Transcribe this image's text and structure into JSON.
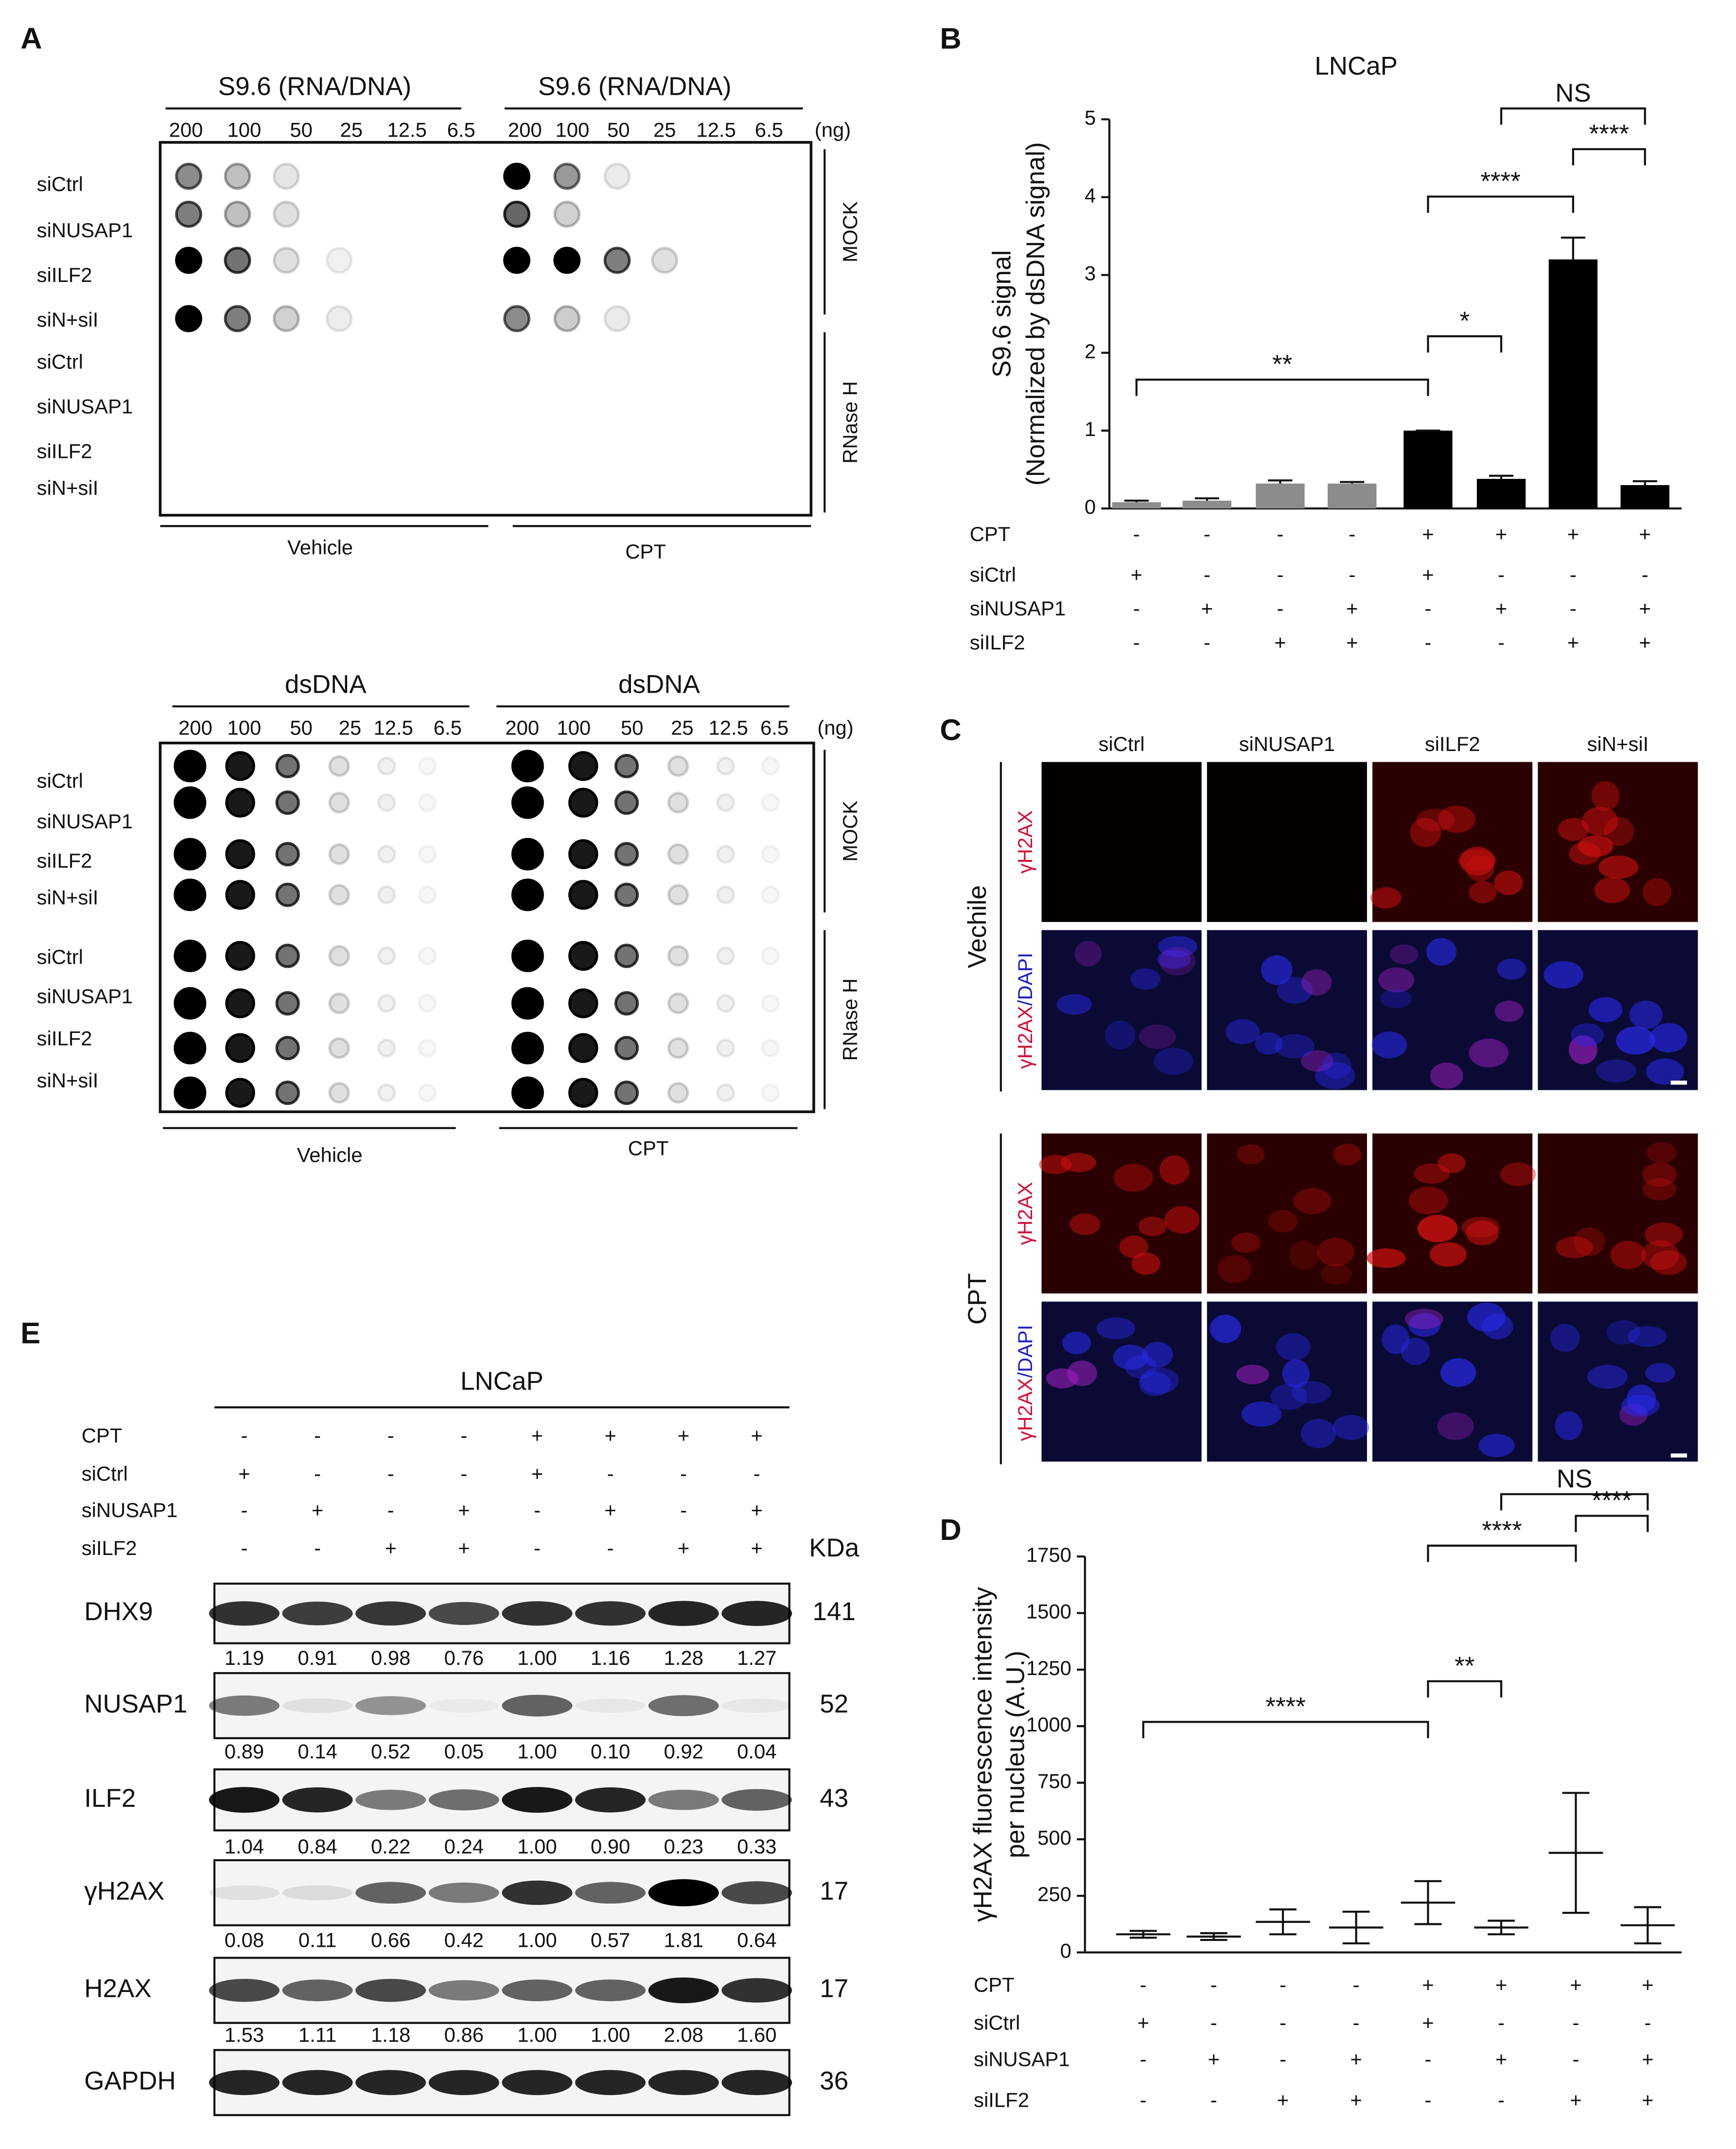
{
  "panel_labels": [
    "A",
    "B",
    "C",
    "D",
    "E"
  ],
  "dot_blot_s96": {
    "headers": [
      "S9.6 (RNA/DNA)",
      "S9.6 (RNA/DNA)"
    ],
    "amounts": [
      "200",
      "100",
      "50",
      "25",
      "12.5",
      "6.5"
    ],
    "unit": "(ng)",
    "rows": [
      "siCtrl",
      "siNUSAP1",
      "siILF2",
      "siN+siI",
      "siCtrl",
      "siNUSAP1",
      "siILF2",
      "siN+siI"
    ],
    "groups": [
      "MOCK",
      "RNase H"
    ],
    "treatments": [
      "Vehicle",
      "CPT"
    ]
  },
  "dot_blot_dsdna": {
    "headers": [
      "dsDNA",
      "dsDNA"
    ],
    "amounts": [
      "200",
      "100",
      "50",
      "25",
      "12.5",
      "6.5"
    ],
    "unit": "(ng)",
    "rows": [
      "siCtrl",
      "siNUSAP1",
      "siILF2",
      "siN+siI",
      "siCtrl",
      "siNUSAP1",
      "siILF2",
      "siN+siI"
    ],
    "groups": [
      "MOCK",
      "RNase H"
    ],
    "treatments": [
      "Vehicle",
      "CPT"
    ]
  },
  "immunofluorescence": {
    "columns": [
      "siCtrl",
      "siNUSAP1",
      "siILF2",
      "siN+siI"
    ],
    "conditions": [
      "Vechile",
      "CPT"
    ],
    "stain_label": "γH2AX",
    "merge_label_red": "γH2AX",
    "merge_label_blue": "/DAPI"
  },
  "chart_data": [
    {
      "type": "bar",
      "title": "LNCaP",
      "y_label": [
        "S9.6 signal",
        "(Normalized by dsDNA signal)"
      ],
      "values": [
        0.08,
        0.1,
        0.32,
        0.32,
        1.0,
        0.38,
        3.2,
        0.3
      ],
      "errors": [
        0.02,
        0.03,
        0.04,
        0.02,
        0,
        0.04,
        0.28,
        0.05
      ],
      "colors": [
        "#8c8c8c",
        "#8c8c8c",
        "#8c8c8c",
        "#8c8c8c",
        "#000000",
        "#000000",
        "#000000",
        "#000000"
      ],
      "ylim": [
        0,
        5
      ],
      "yticks": [
        0,
        1,
        2,
        3,
        4,
        5
      ],
      "conditions": [
        {
          "name": "CPT",
          "signs": [
            "-",
            "-",
            "-",
            "-",
            "+",
            "+",
            "+",
            "+"
          ]
        },
        {
          "name": "siCtrl",
          "signs": [
            "+",
            "-",
            "-",
            "-",
            "+",
            "-",
            "-",
            "-"
          ]
        },
        {
          "name": "siNUSAP1",
          "signs": [
            "-",
            "+",
            "-",
            "+",
            "-",
            "+",
            "-",
            "+"
          ]
        },
        {
          "name": "siILF2",
          "signs": [
            "-",
            "-",
            "+",
            "+",
            "-",
            "-",
            "+",
            "+"
          ]
        }
      ],
      "annotations": [
        "**",
        "*",
        "****",
        "****",
        "NS"
      ]
    },
    {
      "type": "dot",
      "y_label": [
        "γH2AX fluorescence intensity",
        "per nucleus (A.U.)"
      ],
      "values": [
        80,
        70,
        135,
        110,
        220,
        110,
        440,
        120
      ],
      "errors": [
        15,
        15,
        55,
        70,
        95,
        30,
        265,
        80
      ],
      "color": "#e6337a",
      "ylim": [
        0,
        1750
      ],
      "yticks": [
        0,
        250,
        500,
        750,
        1000,
        1250,
        1500,
        1750
      ],
      "conditions": [
        {
          "name": "CPT",
          "signs": [
            "-",
            "-",
            "-",
            "-",
            "+",
            "+",
            "+",
            "+"
          ]
        },
        {
          "name": "siCtrl",
          "signs": [
            "+",
            "-",
            "-",
            "-",
            "+",
            "-",
            "-",
            "-"
          ]
        },
        {
          "name": "siNUSAP1",
          "signs": [
            "-",
            "+",
            "-",
            "+",
            "-",
            "+",
            "-",
            "+"
          ]
        },
        {
          "name": "siILF2",
          "signs": [
            "-",
            "-",
            "+",
            "+",
            "-",
            "-",
            "+",
            "+"
          ]
        }
      ],
      "annotations": [
        "****",
        "**",
        "****",
        "****",
        "NS"
      ]
    }
  ],
  "western": {
    "title": "LNCaP",
    "conditions": [
      {
        "name": "CPT",
        "signs": [
          "-",
          "-",
          "-",
          "-",
          "+",
          "+",
          "+",
          "+"
        ]
      },
      {
        "name": "siCtrl",
        "signs": [
          "+",
          "-",
          "-",
          "-",
          "+",
          "-",
          "-",
          "-"
        ]
      },
      {
        "name": "siNUSAP1",
        "signs": [
          "-",
          "+",
          "-",
          "+",
          "-",
          "+",
          "-",
          "+"
        ]
      },
      {
        "name": "siILF2",
        "signs": [
          "-",
          "-",
          "+",
          "+",
          "-",
          "-",
          "+",
          "+"
        ]
      }
    ],
    "unit": "KDa",
    "blots": [
      {
        "name": "DHX9",
        "kda": "141",
        "quant": [
          "1.19",
          "0.91",
          "0.98",
          "0.76",
          "1.00",
          "1.16",
          "1.28",
          "1.27"
        ]
      },
      {
        "name": "NUSAP1",
        "kda": "52",
        "quant": [
          "0.89",
          "0.14",
          "0.52",
          "0.05",
          "1.00",
          "0.10",
          "0.92",
          "0.04"
        ]
      },
      {
        "name": "ILF2",
        "kda": "43",
        "quant": [
          "1.04",
          "0.84",
          "0.22",
          "0.24",
          "1.00",
          "0.90",
          "0.23",
          "0.33"
        ]
      },
      {
        "name": "γH2AX",
        "kda": "17",
        "quant": [
          "0.08",
          "0.11",
          "0.66",
          "0.42",
          "1.00",
          "0.57",
          "1.81",
          "0.64"
        ]
      },
      {
        "name": "H2AX",
        "kda": "17",
        "quant": [
          "1.53",
          "1.11",
          "1.18",
          "0.86",
          "1.00",
          "1.00",
          "2.08",
          "1.60"
        ]
      },
      {
        "name": "GAPDH",
        "kda": "36"
      }
    ]
  }
}
